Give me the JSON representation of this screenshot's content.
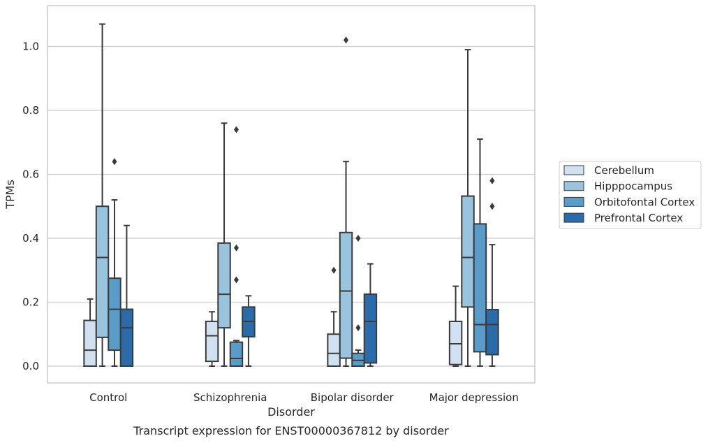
{
  "chart_data": {
    "type": "boxplot",
    "title": "",
    "caption": "Transcript expression for ENST00000367812 by disorder",
    "xlabel": "Disorder",
    "ylabel": "TPMs",
    "ylim": [
      -0.05,
      1.13
    ],
    "yticks": [
      0.0,
      0.2,
      0.4,
      0.6,
      0.8,
      1.0
    ],
    "ytick_labels": [
      "0.0",
      "0.2",
      "0.4",
      "0.6",
      "0.8",
      "1.0"
    ],
    "grid": "horizontal",
    "legend_position": "right",
    "categories": [
      "Control",
      "Schizophrenia",
      "Bipolar disorder",
      "Major depression"
    ],
    "series": [
      {
        "name": "Cerebellum",
        "color": "#d1e1f1",
        "boxes": [
          {
            "whislo": 0.0,
            "q1": 0.0,
            "med": 0.05,
            "q3": 0.143,
            "whishi": 0.21,
            "fliers": []
          },
          {
            "whislo": 0.0,
            "q1": 0.015,
            "med": 0.095,
            "q3": 0.14,
            "whishi": 0.17,
            "fliers": []
          },
          {
            "whislo": 0.0,
            "q1": 0.0,
            "med": 0.04,
            "q3": 0.1,
            "whishi": 0.17,
            "fliers": [
              0.3
            ]
          },
          {
            "whislo": 0.0,
            "q1": 0.005,
            "med": 0.07,
            "q3": 0.14,
            "whishi": 0.25,
            "fliers": []
          }
        ]
      },
      {
        "name": "Hipppocampus",
        "color": "#9ac4dd",
        "boxes": [
          {
            "whislo": 0.0,
            "q1": 0.09,
            "med": 0.34,
            "q3": 0.5,
            "whishi": 1.07,
            "fliers": []
          },
          {
            "whislo": 0.0,
            "q1": 0.12,
            "med": 0.225,
            "q3": 0.385,
            "whishi": 0.76,
            "fliers": []
          },
          {
            "whislo": 0.0,
            "q1": 0.025,
            "med": 0.235,
            "q3": 0.418,
            "whishi": 0.64,
            "fliers": [
              1.02
            ]
          },
          {
            "whislo": 0.0,
            "q1": 0.185,
            "med": 0.34,
            "q3": 0.532,
            "whishi": 0.99,
            "fliers": []
          }
        ]
      },
      {
        "name": "Orbitofontal Cortex",
        "color": "#5a9bc8",
        "boxes": [
          {
            "whislo": 0.0,
            "q1": 0.05,
            "med": 0.178,
            "q3": 0.275,
            "whishi": 0.52,
            "fliers": [
              0.64
            ]
          },
          {
            "whislo": 0.0,
            "q1": 0.0,
            "med": 0.024,
            "q3": 0.075,
            "whishi": 0.08,
            "fliers": [
              0.27,
              0.37,
              0.74
            ]
          },
          {
            "whislo": 0.0,
            "q1": 0.0,
            "med": 0.018,
            "q3": 0.04,
            "whishi": 0.05,
            "fliers": [
              0.12,
              0.4
            ]
          },
          {
            "whislo": 0.0,
            "q1": 0.045,
            "med": 0.13,
            "q3": 0.445,
            "whishi": 0.71,
            "fliers": []
          }
        ]
      },
      {
        "name": "Prefrontal Cortex",
        "color": "#2b6ba9",
        "boxes": [
          {
            "whislo": 0.0,
            "q1": 0.0,
            "med": 0.12,
            "q3": 0.178,
            "whishi": 0.44,
            "fliers": []
          },
          {
            "whislo": 0.0,
            "q1": 0.092,
            "med": 0.14,
            "q3": 0.185,
            "whishi": 0.22,
            "fliers": []
          },
          {
            "whislo": 0.0,
            "q1": 0.01,
            "med": 0.14,
            "q3": 0.225,
            "whishi": 0.32,
            "fliers": []
          },
          {
            "whislo": 0.0,
            "q1": 0.036,
            "med": 0.13,
            "q3": 0.177,
            "whishi": 0.38,
            "fliers": [
              0.5,
              0.58
            ]
          }
        ]
      }
    ]
  }
}
